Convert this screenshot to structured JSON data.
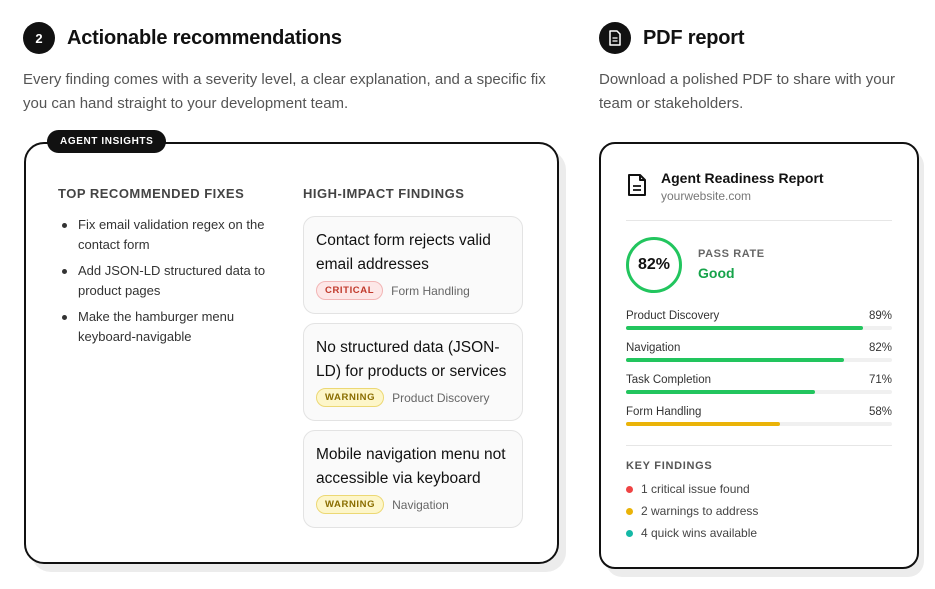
{
  "left_section": {
    "step": "2",
    "title": "Actionable recommendations",
    "description_line1": "Every finding comes with a severity level, a clear explanation, and a specific fix",
    "description_line2": "you can hand straight to your development team."
  },
  "right_section": {
    "icon": "document-icon",
    "title": "PDF report",
    "description_line1": "Download a polished PDF to share with your",
    "description_line2": "team or stakeholders."
  },
  "insights_card": {
    "badge": "AGENT INSIGHTS",
    "fixes_heading": "TOP RECOMMENDED FIXES",
    "fixes": [
      {
        "line1": "Fix email validation regex on the",
        "line2": "contact form"
      },
      {
        "line1": "Add JSON-LD structured data to",
        "line2": "product pages"
      },
      {
        "line1": "Make the hamburger menu",
        "line2": "keyboard-navigable"
      }
    ],
    "findings_heading": "HIGH-IMPACT FINDINGS",
    "findings": [
      {
        "line1": "Contact form rejects valid",
        "line2": "email addresses",
        "severity": "CRITICAL",
        "category": "Form Handling"
      },
      {
        "line1": "No structured data (JSON-",
        "line2": "LD) for products or services",
        "severity": "WARNING",
        "category": "Product Discovery"
      },
      {
        "line1": "Mobile navigation menu not",
        "line2": "accessible via keyboard",
        "severity": "WARNING",
        "category": "Navigation"
      }
    ]
  },
  "report_card": {
    "title": "Agent Readiness Report",
    "site": "yourwebsite.com",
    "pass_percent": "82%",
    "pass_label": "PASS RATE",
    "pass_value": "Good",
    "metrics": [
      {
        "label": "Product Discovery",
        "value": "89%",
        "fraction": 0.89,
        "color": "#22c55e"
      },
      {
        "label": "Navigation",
        "value": "82%",
        "fraction": 0.82,
        "color": "#22c55e"
      },
      {
        "label": "Task Completion",
        "value": "71%",
        "fraction": 0.71,
        "color": "#22c55e"
      },
      {
        "label": "Form Handling",
        "value": "58%",
        "fraction": 0.58,
        "color": "#eab308"
      }
    ],
    "key_findings_heading": "KEY FINDINGS",
    "key_findings": [
      {
        "text": "1 critical issue found",
        "color": "#ef4444"
      },
      {
        "text": "2 warnings to address",
        "color": "#eab308"
      },
      {
        "text": "4 quick wins available",
        "color": "#14b8a6"
      }
    ]
  }
}
